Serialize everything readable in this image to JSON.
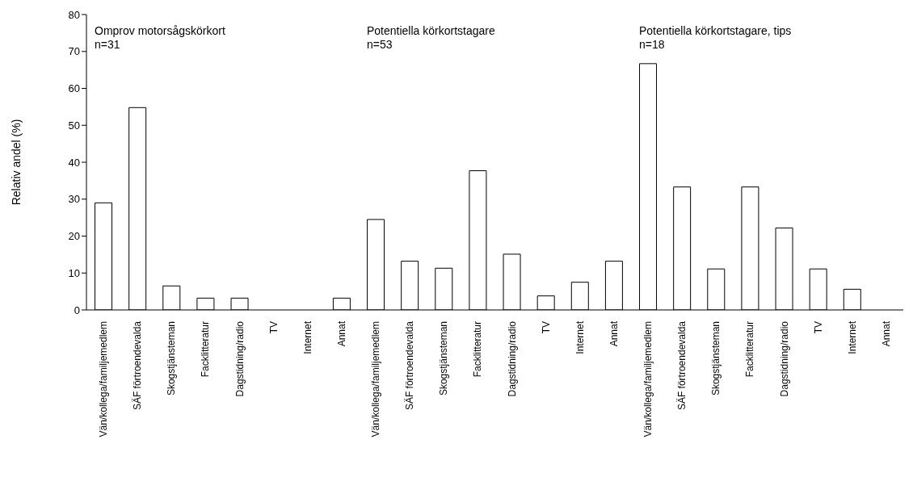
{
  "chart_data": [
    {
      "type": "bar",
      "title": "Omprov motorsågskörkort",
      "subtitle": "n=31",
      "ylabel": "Relativ andel (%)",
      "categories": [
        "Vän/kollega/familjemedlem",
        "SÄF förtroendevalda",
        "Skogstjänsteman",
        "Facklitteratur",
        "Dagstidning/radio",
        "TV",
        "Internet",
        "Annat"
      ],
      "values": [
        29.0,
        54.8,
        6.5,
        3.2,
        3.2,
        0,
        0,
        3.2
      ],
      "color": "#ffffff",
      "ylim": [
        0,
        80
      ],
      "yticks": [
        0,
        10,
        20,
        30,
        40,
        50,
        60,
        70,
        80
      ]
    },
    {
      "type": "bar",
      "title": "Potentiella körkortstagare",
      "subtitle": "n=53",
      "categories": [
        "Vän/kollega/familjemedlem",
        "SÄF förtroendevalda",
        "Skogstjänsteman",
        "Facklitteratur",
        "Dagstidning/radio",
        "TV",
        "Internet",
        "Annat"
      ],
      "values": [
        24.5,
        13.2,
        11.3,
        37.7,
        15.1,
        3.8,
        7.5,
        13.2
      ],
      "color": "#ffffff",
      "ylim": [
        0,
        80
      ],
      "yticks": [
        0,
        10,
        20,
        30,
        40,
        50,
        60,
        70,
        80
      ],
      "tick_labels": "x"
    },
    {
      "type": "bar",
      "title": "Potentiella körkortstagare, tips",
      "subtitle": "n=18",
      "categories": [
        "Vän/kollega/familjemedlem",
        "SÄF förtroendevalda",
        "Skogstjänsteman",
        "Facklitteratur",
        "Dagstidning/radio",
        "TV",
        "Internet",
        "Annat"
      ],
      "values": [
        66.7,
        33.3,
        11.1,
        33.3,
        22.2,
        11.1,
        5.6,
        0
      ],
      "color": "#ffffff",
      "ylim": [
        0,
        80
      ],
      "yticks": [
        0,
        10,
        20,
        30,
        40,
        50,
        60,
        70,
        80
      ],
      "tick_labels": "x"
    }
  ]
}
